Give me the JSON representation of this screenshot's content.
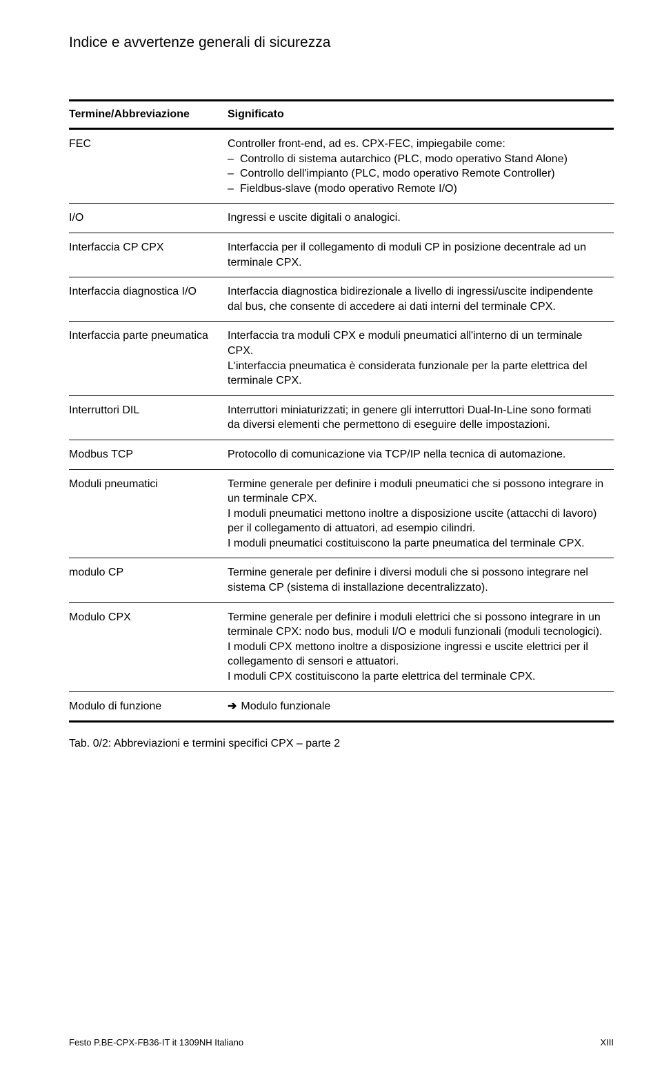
{
  "page_title": "Indice e avvertenze generali di sicurezza",
  "table": {
    "header_term": "Termine/Abbreviazione",
    "header_meaning": "Significato"
  },
  "rows": {
    "fec": {
      "term": "FEC",
      "lead": "Controller front-end, ad es. CPX-FEC, impiegabile come:",
      "items": [
        "Controllo di sistema autarchico (PLC, modo operativo Stand Alone)",
        "Controllo dell'impianto (PLC, modo operativo Remote Controller)",
        "Fieldbus-slave (modo operativo Remote I/O)"
      ]
    },
    "io": {
      "term": "I/O",
      "meaning": "Ingressi e uscite digitali o analogici."
    },
    "cpcpx": {
      "term": "Interfaccia CP CPX",
      "meaning": "Interfaccia per il collegamento di moduli CP in posizione decentrale ad un terminale CPX."
    },
    "diagio": {
      "term": "Interfaccia diagnostica I/O",
      "meaning": "Interfaccia diagnostica bidirezionale a livello di ingressi/uscite indipendente dal bus, che consente di accedere ai dati interni del terminale CPX."
    },
    "pneu_if": {
      "term": "Interfaccia parte pneumatica",
      "p1": "Interfaccia tra moduli CPX e moduli pneumatici all'interno di un terminale CPX.",
      "p2": "L'interfaccia pneumatica è considerata funzionale per la parte elettrica del terminale CPX."
    },
    "dil": {
      "term": "Interruttori DIL",
      "meaning": "Interruttori miniaturizzati; in genere gli interruttori Dual-In-Line sono formati da diversi elementi che permettono di eseguire delle impostazioni."
    },
    "modbus": {
      "term": "Modbus TCP",
      "meaning": "Protocollo di comunicazione via TCP/IP nella tecnica di automazione."
    },
    "modpneu": {
      "term": "Moduli pneumatici",
      "p1": "Termine generale per definire i moduli pneumatici che si possono integrare in un terminale CPX.",
      "p2": "I moduli pneumatici mettono inoltre a disposizione uscite (attacchi di lavoro) per il collegamento di attuatori, ad esempio cilindri.",
      "p3": "I moduli pneumatici costituiscono la parte pneumatica del terminale CPX."
    },
    "modcp": {
      "term": "modulo CP",
      "meaning": "Termine generale per definire i diversi moduli che si possono integrare nel sistema CP (sistema di installazione decentralizzato)."
    },
    "modcpx": {
      "term": "Modulo CPX",
      "p1": "Termine generale per definire i moduli elettrici che si possono integrare in un terminale CPX: nodo bus, moduli I/O e moduli funzionali (moduli tecnologici).",
      "p2": "I moduli CPX mettono inoltre a disposizione ingressi e uscite elettrici per il collegamento di sensori e attuatori.",
      "p3": "I moduli CPX costituiscono la parte elettrica del terminale CPX."
    },
    "modfun": {
      "term": "Modulo di funzione",
      "meaning": "Modulo funzionale"
    }
  },
  "caption": "Tab. 0/2:   Abbreviazioni e termini specifici CPX – parte 2",
  "footer_left": "Festo P.BE-CPX-FB36-IT  it 1309NH  Italiano",
  "footer_right": "XIII"
}
